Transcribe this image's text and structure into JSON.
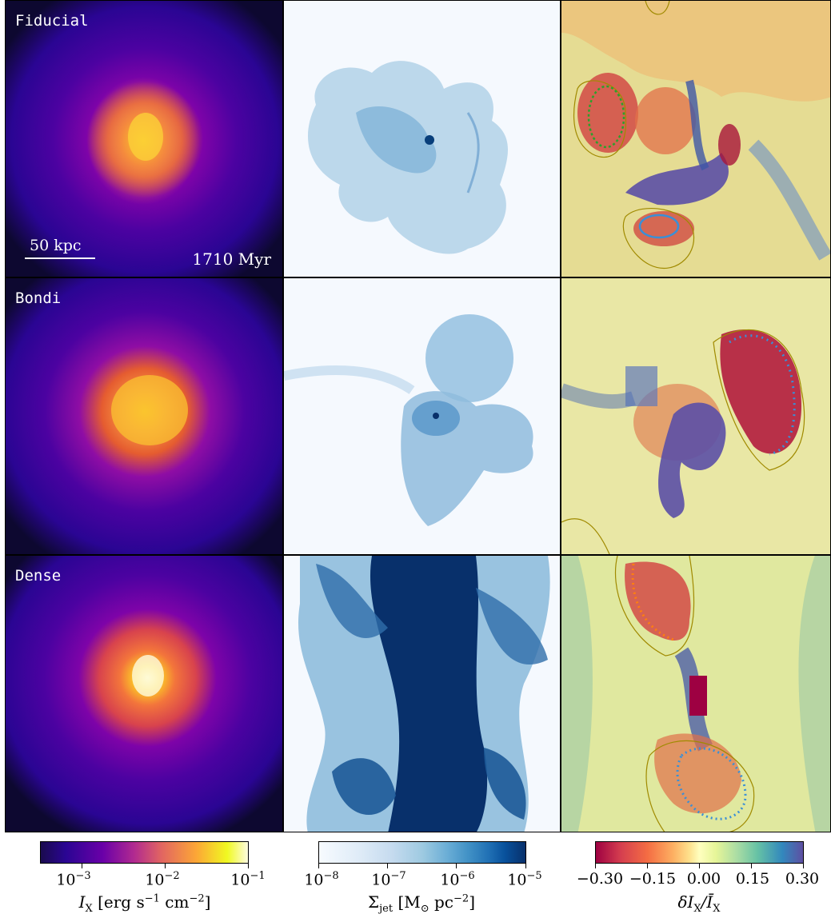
{
  "rows": [
    {
      "label": "Fiducial"
    },
    {
      "label": "Bondi"
    },
    {
      "label": "Dense"
    }
  ],
  "scale_bar": {
    "label": "50 kpc"
  },
  "time": "1710 Myr",
  "colorbars": [
    {
      "name": "xray",
      "colormap": "plasma",
      "ticks": [
        {
          "base": "10",
          "exp": "−3"
        },
        {
          "base": "10",
          "exp": "−2"
        },
        {
          "base": "10",
          "exp": "−1"
        }
      ],
      "label_main": "I",
      "label_sub": "X",
      "label_units": "[erg s",
      "label_units2": "cm",
      "label_tail": "]"
    },
    {
      "name": "jet",
      "colormap": "blues",
      "ticks": [
        {
          "base": "10",
          "exp": "−8"
        },
        {
          "base": "10",
          "exp": "−7"
        },
        {
          "base": "10",
          "exp": "−6"
        },
        {
          "base": "10",
          "exp": "−5"
        }
      ],
      "label_main": "Σ",
      "label_sub": "jet",
      "label_units": "[M",
      "label_units2": "pc",
      "label_tail": "]"
    },
    {
      "name": "residual",
      "colormap": "spectral",
      "ticks": [
        "−0.30",
        "−0.15",
        "0.00",
        "0.15",
        "0.30"
      ],
      "label": "δI"
    }
  ],
  "colors": {
    "plasma_dark": "#0d0887",
    "plasma_mid": "#cc4778",
    "plasma_bright": "#f0f921",
    "blues_light": "#f7fbff",
    "blues_dark": "#08306b",
    "spectral_red": "#9e0142",
    "spectral_yellow": "#ffffbf",
    "spectral_blue": "#5e4fa2",
    "contour_olive": "#a08a00",
    "contour_green": "#2ca02c",
    "contour_blue": "#3a8fd6",
    "contour_orange": "#ff7f0e"
  }
}
